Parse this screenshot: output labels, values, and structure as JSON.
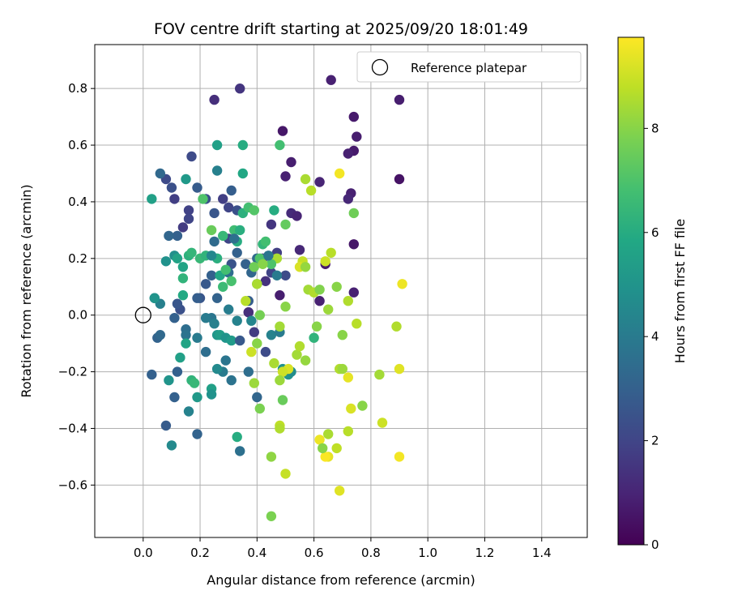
{
  "chart_data": {
    "type": "scatter",
    "title": "FOV centre drift starting at 2025/09/20 18:01:49",
    "xlabel": "Angular distance from reference (arcmin)",
    "ylabel": "Rotation from reference (arcmin)",
    "xlim": [
      -0.17,
      1.56
    ],
    "ylim": [
      -0.785,
      0.955
    ],
    "xticks": [
      0.0,
      0.2,
      0.4,
      0.6,
      0.8,
      1.0,
      1.2,
      1.4
    ],
    "xtick_labels": [
      "0.0",
      "0.2",
      "0.4",
      "0.6",
      "0.8",
      "1.0",
      "1.2",
      "1.4"
    ],
    "yticks": [
      -0.6,
      -0.4,
      -0.2,
      0.0,
      0.2,
      0.4,
      0.6,
      0.8
    ],
    "ytick_labels": [
      "−0.6",
      "−0.4",
      "−0.2",
      "0.0",
      "0.2",
      "0.4",
      "0.6",
      "0.8"
    ],
    "grid": true,
    "legend": {
      "label": "Reference platepar",
      "placement": "top-right"
    },
    "reference_point": {
      "x": 0.0,
      "y": 0.0
    },
    "colorbar": {
      "label": "Hours from first FF file",
      "range": [
        0,
        9.75
      ],
      "ticks": [
        0,
        2,
        4,
        6,
        8
      ],
      "tick_labels": [
        "0",
        "2",
        "4",
        "6",
        "8"
      ],
      "colormap": "viridis"
    },
    "series": [
      {
        "name": "FF file centres",
        "points": [
          [
            0.34,
            0.8,
            1.5
          ],
          [
            0.25,
            0.76,
            1.3
          ],
          [
            0.66,
            0.83,
            0.9
          ],
          [
            0.9,
            0.76,
            0.8
          ],
          [
            0.74,
            0.7,
            0.7
          ],
          [
            0.49,
            0.65,
            0.6
          ],
          [
            0.75,
            0.63,
            0.8
          ],
          [
            0.74,
            0.58,
            0.7
          ],
          [
            0.72,
            0.57,
            0.9
          ],
          [
            0.52,
            0.54,
            0.8
          ],
          [
            0.5,
            0.49,
            0.9
          ],
          [
            0.62,
            0.47,
            1.0
          ],
          [
            0.9,
            0.48,
            0.5
          ],
          [
            0.73,
            0.43,
            0.9
          ],
          [
            0.72,
            0.41,
            1.1
          ],
          [
            0.52,
            0.36,
            1.2
          ],
          [
            0.54,
            0.35,
            1.0
          ],
          [
            0.74,
            0.25,
            0.6
          ],
          [
            0.55,
            0.23,
            1.1
          ],
          [
            0.45,
            0.32,
            1.5
          ],
          [
            0.47,
            0.22,
            1.8
          ],
          [
            0.42,
            0.2,
            1.7
          ],
          [
            0.45,
            0.15,
            2.0
          ],
          [
            0.5,
            0.14,
            2.2
          ],
          [
            0.43,
            0.12,
            1.4
          ],
          [
            0.48,
            0.07,
            0.8
          ],
          [
            0.62,
            0.05,
            0.9
          ],
          [
            0.74,
            0.08,
            0.9
          ],
          [
            0.64,
            0.18,
            0.7
          ],
          [
            0.37,
            0.01,
            1.0
          ],
          [
            0.17,
            0.56,
            2.2
          ],
          [
            0.19,
            0.45,
            2.8
          ],
          [
            0.1,
            0.45,
            2.4
          ],
          [
            0.08,
            0.48,
            2.2
          ],
          [
            0.11,
            0.41,
            1.8
          ],
          [
            0.16,
            0.37,
            1.9
          ],
          [
            0.14,
            0.31,
            1.7
          ],
          [
            0.16,
            0.34,
            2.0
          ],
          [
            0.22,
            0.41,
            2.4
          ],
          [
            0.28,
            0.41,
            1.8
          ],
          [
            0.3,
            0.38,
            2.0
          ],
          [
            0.33,
            0.37,
            2.4
          ],
          [
            0.31,
            0.44,
            2.9
          ],
          [
            0.25,
            0.36,
            2.6
          ],
          [
            0.12,
            0.28,
            3.0
          ],
          [
            0.09,
            0.28,
            3.2
          ],
          [
            0.25,
            0.26,
            3.4
          ],
          [
            0.3,
            0.27,
            2.0
          ],
          [
            0.31,
            0.18,
            2.5
          ],
          [
            0.33,
            0.22,
            3.0
          ],
          [
            0.36,
            0.18,
            3.0
          ],
          [
            0.4,
            0.2,
            3.4
          ],
          [
            0.38,
            0.15,
            3.2
          ],
          [
            0.3,
            0.15,
            3.5
          ],
          [
            0.24,
            0.14,
            3.0
          ],
          [
            0.26,
            0.06,
            3.1
          ],
          [
            0.22,
            0.11,
            2.7
          ],
          [
            0.2,
            0.06,
            2.6
          ],
          [
            0.13,
            0.02,
            2.4
          ],
          [
            0.12,
            0.04,
            2.6
          ],
          [
            0.11,
            -0.01,
            3.0
          ],
          [
            0.05,
            -0.08,
            3.1
          ],
          [
            0.06,
            -0.07,
            3.3
          ],
          [
            0.15,
            -0.05,
            3.5
          ],
          [
            0.15,
            -0.07,
            3.7
          ],
          [
            0.19,
            -0.08,
            4.0
          ],
          [
            0.24,
            -0.01,
            3.8
          ],
          [
            0.22,
            -0.01,
            4.0
          ],
          [
            0.25,
            -0.03,
            4.2
          ],
          [
            0.3,
            0.02,
            4.1
          ],
          [
            0.33,
            -0.02,
            4.3
          ],
          [
            0.37,
            0.05,
            2.9
          ],
          [
            0.37,
            0.01,
            1.3
          ],
          [
            0.39,
            -0.06,
            1.7
          ],
          [
            0.43,
            -0.13,
            2.2
          ],
          [
            0.45,
            -0.07,
            4.3
          ],
          [
            0.48,
            -0.06,
            4.0
          ],
          [
            0.37,
            -0.2,
            3.5
          ],
          [
            0.4,
            -0.29,
            3.2
          ],
          [
            0.29,
            -0.16,
            3.8
          ],
          [
            0.28,
            -0.2,
            4.0
          ],
          [
            0.31,
            -0.23,
            3.7
          ],
          [
            0.26,
            -0.19,
            4.6
          ],
          [
            0.22,
            -0.13,
            3.5
          ],
          [
            0.12,
            -0.2,
            3.0
          ],
          [
            0.11,
            -0.29,
            3.0
          ],
          [
            0.09,
            -0.23,
            5.0
          ],
          [
            0.03,
            -0.21,
            3.0
          ],
          [
            0.08,
            -0.39,
            2.8
          ],
          [
            0.19,
            -0.42,
            3.1
          ],
          [
            0.16,
            -0.34,
            4.3
          ],
          [
            0.1,
            -0.46,
            4.6
          ],
          [
            0.34,
            -0.48,
            3.6
          ],
          [
            0.33,
            -0.43,
            6.0
          ],
          [
            0.13,
            -0.15,
            5.5
          ],
          [
            0.15,
            -0.1,
            5.7
          ],
          [
            0.17,
            -0.23,
            6.3
          ],
          [
            0.18,
            -0.24,
            6.5
          ],
          [
            0.19,
            -0.29,
            5.2
          ],
          [
            0.24,
            -0.26,
            5.5
          ],
          [
            0.24,
            -0.28,
            4.9
          ],
          [
            0.26,
            -0.07,
            5.1
          ],
          [
            0.27,
            -0.07,
            5.4
          ],
          [
            0.29,
            -0.08,
            5.0
          ],
          [
            0.31,
            -0.09,
            5.3
          ],
          [
            0.34,
            -0.09,
            2.7
          ],
          [
            0.38,
            -0.02,
            4.4
          ],
          [
            0.49,
            -0.19,
            4.9
          ],
          [
            0.51,
            -0.21,
            5.0
          ],
          [
            0.52,
            -0.2,
            4.7
          ],
          [
            0.04,
            0.06,
            4.0
          ],
          [
            0.06,
            0.04,
            4.2
          ],
          [
            0.08,
            0.19,
            4.9
          ],
          [
            0.11,
            0.21,
            4.8
          ],
          [
            0.12,
            0.2,
            5.6
          ],
          [
            0.14,
            0.17,
            5.7
          ],
          [
            0.16,
            0.21,
            6.2
          ],
          [
            0.17,
            0.22,
            6.4
          ],
          [
            0.2,
            0.2,
            6.5
          ],
          [
            0.22,
            0.21,
            6.3
          ],
          [
            0.26,
            0.2,
            6.1
          ],
          [
            0.28,
            0.28,
            6.5
          ],
          [
            0.27,
            0.14,
            5.8
          ],
          [
            0.28,
            0.1,
            6.6
          ],
          [
            0.29,
            0.16,
            6.8
          ],
          [
            0.31,
            0.12,
            6.9
          ],
          [
            0.32,
            0.3,
            6.7
          ],
          [
            0.33,
            0.26,
            6.0
          ],
          [
            0.34,
            0.3,
            6.1
          ],
          [
            0.35,
            0.36,
            6.2
          ],
          [
            0.37,
            0.38,
            6.8
          ],
          [
            0.39,
            0.37,
            7.1
          ],
          [
            0.35,
            0.6,
            6.0
          ],
          [
            0.26,
            0.6,
            5.5
          ],
          [
            0.35,
            0.5,
            5.8
          ],
          [
            0.26,
            0.51,
            4.2
          ],
          [
            0.15,
            0.48,
            5.2
          ],
          [
            0.03,
            0.41,
            5.5
          ],
          [
            0.04,
            0.06,
            5.0
          ],
          [
            0.14,
            0.07,
            5.9
          ],
          [
            0.14,
            0.13,
            6.3
          ],
          [
            0.21,
            0.41,
            7.0
          ],
          [
            0.24,
            0.3,
            7.5
          ],
          [
            0.4,
            0.11,
            6.5
          ],
          [
            0.39,
            0.17,
            7.6
          ],
          [
            0.41,
            0.2,
            7.0
          ],
          [
            0.42,
            0.25,
            6.4
          ],
          [
            0.43,
            0.26,
            6.8
          ],
          [
            0.46,
            0.37,
            6.0
          ],
          [
            0.48,
            0.6,
            6.8
          ],
          [
            0.5,
            0.32,
            7.4
          ],
          [
            0.47,
            0.2,
            8.5
          ],
          [
            0.45,
            0.18,
            7.0
          ],
          [
            0.42,
            0.18,
            8.0
          ],
          [
            0.5,
            0.03,
            8.0
          ],
          [
            0.57,
            0.48,
            8.5
          ],
          [
            0.59,
            0.44,
            8.7
          ],
          [
            0.56,
            0.19,
            8.9
          ],
          [
            0.55,
            0.17,
            9.2
          ],
          [
            0.57,
            0.17,
            8.2
          ],
          [
            0.58,
            0.09,
            8.4
          ],
          [
            0.6,
            0.08,
            8.6
          ],
          [
            0.62,
            0.09,
            7.9
          ],
          [
            0.64,
            0.19,
            9.0
          ],
          [
            0.66,
            0.22,
            8.7
          ],
          [
            0.68,
            0.1,
            8.0
          ],
          [
            0.69,
            0.5,
            9.6
          ],
          [
            0.72,
            0.05,
            8.6
          ],
          [
            0.74,
            0.36,
            7.6
          ],
          [
            0.75,
            -0.03,
            8.7
          ],
          [
            0.65,
            0.02,
            8.3
          ],
          [
            0.61,
            -0.04,
            8.0
          ],
          [
            0.6,
            -0.08,
            6.3
          ],
          [
            0.54,
            -0.14,
            8.4
          ],
          [
            0.55,
            -0.11,
            8.6
          ],
          [
            0.57,
            -0.16,
            8.2
          ],
          [
            0.51,
            -0.19,
            9.2
          ],
          [
            0.46,
            -0.17,
            8.5
          ],
          [
            0.49,
            -0.2,
            9.0
          ],
          [
            0.48,
            -0.23,
            8.3
          ],
          [
            0.48,
            -0.04,
            8.4
          ],
          [
            0.41,
            0.0,
            7.7
          ],
          [
            0.4,
            -0.1,
            8.0
          ],
          [
            0.39,
            -0.24,
            8.3
          ],
          [
            0.41,
            -0.33,
            7.8
          ],
          [
            0.48,
            -0.39,
            8.8
          ],
          [
            0.49,
            -0.3,
            7.5
          ],
          [
            0.48,
            -0.4,
            8.6
          ],
          [
            0.45,
            -0.5,
            8.1
          ],
          [
            0.5,
            -0.56,
            8.9
          ],
          [
            0.45,
            -0.71,
            7.8
          ],
          [
            0.38,
            -0.13,
            9.0
          ],
          [
            0.36,
            0.05,
            8.7
          ],
          [
            0.4,
            0.11,
            8.5
          ],
          [
            0.7,
            -0.07,
            8.0
          ],
          [
            0.69,
            -0.19,
            8.6
          ],
          [
            0.7,
            -0.19,
            8.3
          ],
          [
            0.72,
            -0.22,
            9.4
          ],
          [
            0.73,
            -0.33,
            9.2
          ],
          [
            0.72,
            -0.41,
            8.7
          ],
          [
            0.77,
            -0.32,
            8.0
          ],
          [
            0.83,
            -0.21,
            8.4
          ],
          [
            0.84,
            -0.38,
            9.0
          ],
          [
            0.89,
            -0.04,
            8.6
          ],
          [
            0.9,
            -0.19,
            9.3
          ],
          [
            0.9,
            -0.5,
            9.6
          ],
          [
            0.91,
            0.11,
            9.5
          ],
          [
            0.69,
            -0.62,
            9.3
          ],
          [
            0.68,
            -0.47,
            8.8
          ],
          [
            0.65,
            -0.5,
            9.4
          ],
          [
            0.64,
            -0.5,
            9.7
          ],
          [
            0.65,
            -0.42,
            8.5
          ],
          [
            0.62,
            -0.44,
            9.5
          ],
          [
            0.63,
            -0.47,
            8.0
          ],
          [
            0.19,
            0.06,
            2.9
          ],
          [
            0.06,
            0.5,
            3.3
          ],
          [
            0.32,
            0.27,
            3.6
          ],
          [
            0.44,
            0.21,
            3.8
          ],
          [
            0.47,
            0.14,
            4.0
          ],
          [
            0.24,
            0.21,
            4.5
          ]
        ]
      }
    ]
  }
}
